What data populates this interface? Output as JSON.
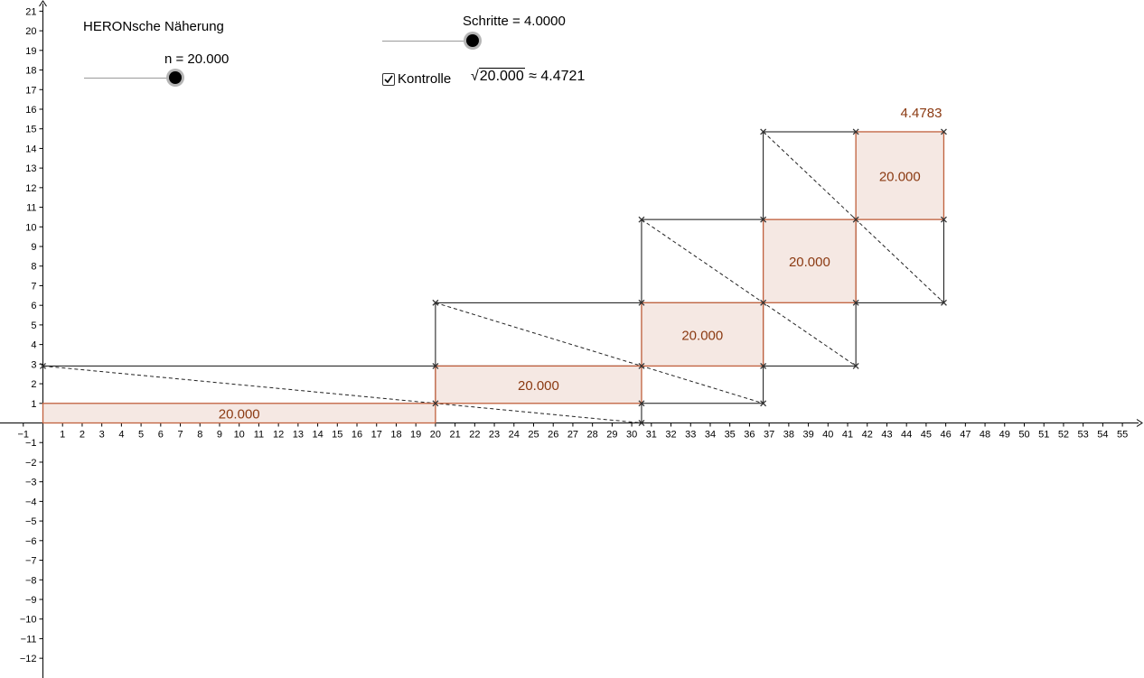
{
  "title": "HERONsche Näherung",
  "slider_n": {
    "label": "n = 20.000",
    "value": 20,
    "min": 1,
    "max": 25
  },
  "slider_steps": {
    "label": "Schritte = 4.0000",
    "value": 4,
    "min": 0,
    "max": 4
  },
  "kontrolle": {
    "label": "Kontrolle",
    "checked": true
  },
  "sqrt_expr": {
    "sqrt_symbol": "√",
    "radicand": "20.000",
    "approx": "≈ 4.4721"
  },
  "colors": {
    "rect_stroke": "#c0603d",
    "rect_fill": "#f5e8e3",
    "label_color": "#8b3a12",
    "outline": "#111111"
  },
  "graph": {
    "x_axis": {
      "min": -1,
      "max": 55
    },
    "y_axis": {
      "min": -12,
      "max": 21
    },
    "rectangles": [
      {
        "x1": 0,
        "y1": 0,
        "x2": 20,
        "y2": 1,
        "label": "20.000"
      },
      {
        "x1": 20,
        "y1": 1,
        "x2": 30.5,
        "y2": 2.905,
        "label": "20.000"
      },
      {
        "x1": 30.5,
        "y1": 2.905,
        "x2": 36.7,
        "y2": 6.132,
        "label": "20.000"
      },
      {
        "x1": 36.7,
        "y1": 6.132,
        "x2": 41.42,
        "y2": 10.375,
        "label": "20.000"
      },
      {
        "x1": 41.42,
        "y1": 10.375,
        "x2": 45.9,
        "y2": 14.85,
        "label": "20.000"
      }
    ],
    "result_label": "4.4783"
  }
}
